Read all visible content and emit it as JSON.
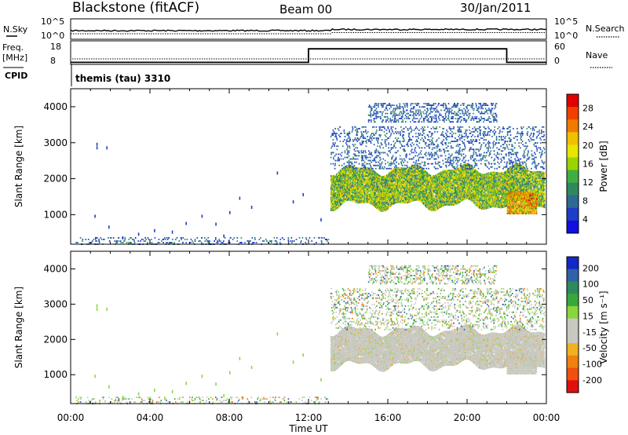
{
  "header": {
    "station": "Blackstone (fitACF)",
    "beam": "Beam 00",
    "date": "30/Jan/2011"
  },
  "top_panels": {
    "nsky_label": "N.Sky",
    "nsky_ticks": [
      "10^5",
      "10^0"
    ],
    "nsearch_label": "N.Search",
    "nsearch_ticks": [
      "10^5",
      "10^0"
    ],
    "freq_label": "Freq.",
    "freq_unit": "[MHz]",
    "freq_ticks": [
      "18",
      "8"
    ],
    "nave_label": "Nave",
    "nave_ticks": [
      "60",
      "0"
    ],
    "cpid_label": "CPID",
    "cpid_value": "themis (tau) 3310",
    "freq_steps": [
      [
        0,
        9.2
      ],
      [
        12,
        9.2
      ],
      [
        12,
        17.0
      ],
      [
        22,
        17.0
      ],
      [
        22,
        9.2
      ],
      [
        24,
        9.2
      ]
    ]
  },
  "panels": [
    {
      "id": "power",
      "ylabel": "Slant Range [km]",
      "colorbar_title": "Power [dB]",
      "colorbar_labels": [
        "28",
        "24",
        "20",
        "16",
        "12",
        "8",
        "4"
      ],
      "colorbar_colors": [
        "#e00000",
        "#f04000",
        "#f07a00",
        "#f0c000",
        "#e6e600",
        "#9ad400",
        "#3fb040",
        "#2e8a5e",
        "#2c6a94",
        "#1c3ec8",
        "#1010e0"
      ]
    },
    {
      "id": "velocity",
      "ylabel": "Slant Range [km]",
      "colorbar_title": "Velocity [m s⁻¹]",
      "colorbar_labels": [
        "200",
        "100",
        "50",
        "15",
        "-15",
        "-50",
        "-100",
        "-200"
      ],
      "colorbar_colors": [
        "#1428c8",
        "#2f62a8",
        "#2e8a5e",
        "#37a83c",
        "#88d63c",
        "#c8c8c0",
        "#c8c8c0",
        "#f0b020",
        "#f08010",
        "#f05010",
        "#e01010"
      ]
    }
  ],
  "x_axis": {
    "label": "Time UT",
    "ticks": [
      "00:00",
      "04:00",
      "08:00",
      "12:00",
      "16:00",
      "20:00",
      "00:00"
    ]
  },
  "chart_data": {
    "type": "heatmap",
    "x_unit": "hours UT",
    "xlim": [
      0,
      24
    ],
    "ylim": [
      180,
      4500
    ],
    "y_ticks": [
      1000,
      2000,
      3000,
      4000
    ],
    "series": [
      {
        "name": "Power",
        "zlim": [
          0,
          30
        ]
      },
      {
        "name": "Velocity",
        "zlim": [
          -250,
          250
        ]
      }
    ],
    "blocks": [
      {
        "t0": 13.1,
        "t1": 23.9,
        "r0": 1300,
        "r1": 2300,
        "density": 0.8,
        "power_mid": 14,
        "power_spread": 8,
        "vel_mode": "gray"
      },
      {
        "t0": 13.1,
        "t1": 23.9,
        "r0": 2300,
        "r1": 3500,
        "density": 0.12,
        "power_mid": 6,
        "power_spread": 3,
        "vel_mode": "mixed"
      },
      {
        "t0": 15.0,
        "t1": 21.5,
        "r0": 3600,
        "r1": 4150,
        "density": 0.18,
        "power_mid": 6,
        "power_spread": 3,
        "vel_mode": "mixed"
      },
      {
        "t0": 0.2,
        "t1": 13.0,
        "r0": 200,
        "r1": 420,
        "density": 0.1,
        "power_mid": 6,
        "power_spread": 4,
        "vel_mode": "mixed"
      },
      {
        "t0": 22.0,
        "t1": 23.5,
        "r0": 1050,
        "r1": 1700,
        "density": 0.85,
        "power_mid": 20,
        "power_spread": 8,
        "vel_mode": "gray"
      }
    ],
    "scatter": [
      {
        "t": 1.3,
        "r": 3000
      },
      {
        "t": 1.3,
        "r": 2900
      },
      {
        "t": 1.8,
        "r": 2900
      },
      {
        "t": 1.2,
        "r": 1000
      },
      {
        "t": 1.9,
        "r": 700
      },
      {
        "t": 3.4,
        "r": 500
      },
      {
        "t": 5.1,
        "r": 560
      },
      {
        "t": 5.8,
        "r": 800
      },
      {
        "t": 6.6,
        "r": 1000
      },
      {
        "t": 7.3,
        "r": 780
      },
      {
        "t": 8.0,
        "r": 1100
      },
      {
        "t": 8.5,
        "r": 1500
      },
      {
        "t": 9.1,
        "r": 1250
      },
      {
        "t": 10.4,
        "r": 2200
      },
      {
        "t": 11.2,
        "r": 1400
      },
      {
        "t": 11.7,
        "r": 1600
      },
      {
        "t": 7.7,
        "r": 450
      },
      {
        "t": 4.2,
        "r": 600
      },
      {
        "t": 12.6,
        "r": 900
      },
      {
        "t": 2.6,
        "r": 400
      }
    ]
  },
  "colors": {
    "frame": "#000000",
    "trace": "#000000"
  }
}
